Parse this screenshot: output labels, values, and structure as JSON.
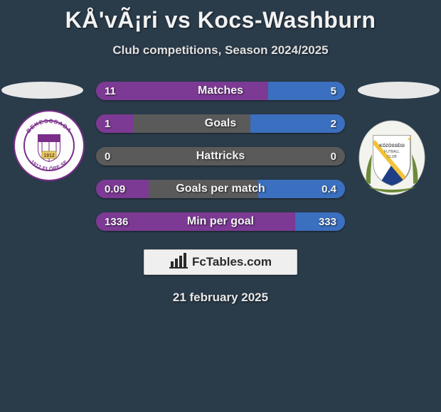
{
  "background_color": "#2a3b4a",
  "title": "KÅ'vÃ¡ri vs Kocs-Washburn",
  "title_fontsize": 32,
  "title_color": "#f2f2f2",
  "subtitle": "Club competitions, Season 2024/2025",
  "subtitle_fontsize": 17,
  "subtitle_color": "#e0e0e0",
  "brand": "FcTables.com",
  "brand_box_bg": "#f0efef",
  "date": "21 february 2025",
  "date_fontsize": 17,
  "date_color": "#e8e8e8",
  "ellipse_color": "#e8e8e8",
  "crest_left": {
    "bg": "#fdfdfd",
    "ring": "#7a2e8a",
    "text_top": "BEKESCSABA",
    "text_bottom": "1912 ELŐRE SE",
    "year": "1912"
  },
  "crest_right": {
    "bg": "#f4f4ef",
    "stripe1": "#1f3e86",
    "stripe2": "#f2c23a",
    "leaf": "#6d8a3a"
  },
  "bar_colors": {
    "left": "#7c3a94",
    "right": "#3b6fbf",
    "mid": "#5a5a5a"
  },
  "bars": [
    {
      "label": "Matches",
      "left": "11",
      "right": "5",
      "left_pct": 69,
      "right_pct": 31,
      "mid_pct": 0
    },
    {
      "label": "Goals",
      "left": "1",
      "right": "2",
      "left_pct": 15,
      "right_pct": 38,
      "mid_pct": 47
    },
    {
      "label": "Hattricks",
      "left": "0",
      "right": "0",
      "left_pct": 0,
      "right_pct": 0,
      "mid_pct": 100
    },
    {
      "label": "Goals per match",
      "left": "0.09",
      "right": "0.4",
      "left_pct": 21,
      "right_pct": 35,
      "mid_pct": 44
    },
    {
      "label": "Min per goal",
      "left": "1336",
      "right": "333",
      "left_pct": 80,
      "right_pct": 20,
      "mid_pct": 0
    }
  ]
}
